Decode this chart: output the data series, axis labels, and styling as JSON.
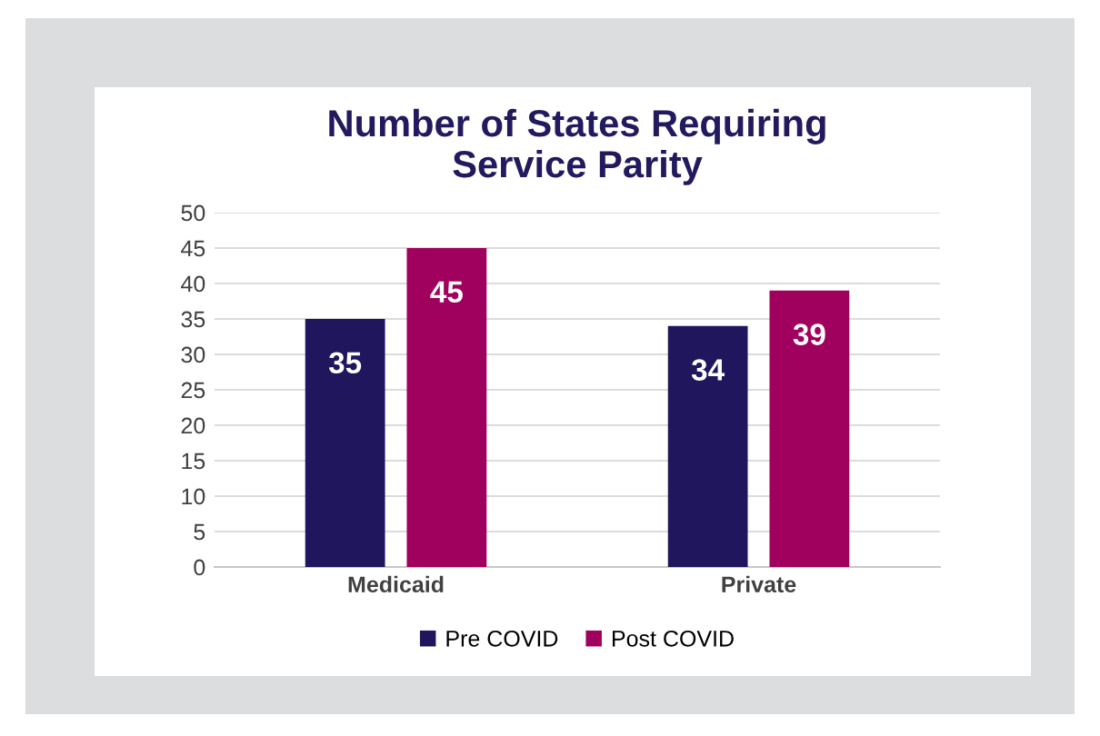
{
  "chart_data": {
    "type": "bar",
    "title": "Number of States Requiring\nService Parity",
    "categories": [
      "Medicaid",
      "Private"
    ],
    "series": [
      {
        "name": "Pre COVID",
        "color": "#20165e",
        "values": [
          35,
          34
        ]
      },
      {
        "name": "Post COVID",
        "color": "#a0005e",
        "values": [
          45,
          39
        ]
      }
    ],
    "ylim": [
      0,
      50
    ],
    "yticks": [
      0,
      5,
      10,
      15,
      20,
      25,
      30,
      35,
      40,
      45,
      50
    ],
    "grid": "y",
    "legend": "bottom",
    "data_labels": true
  }
}
